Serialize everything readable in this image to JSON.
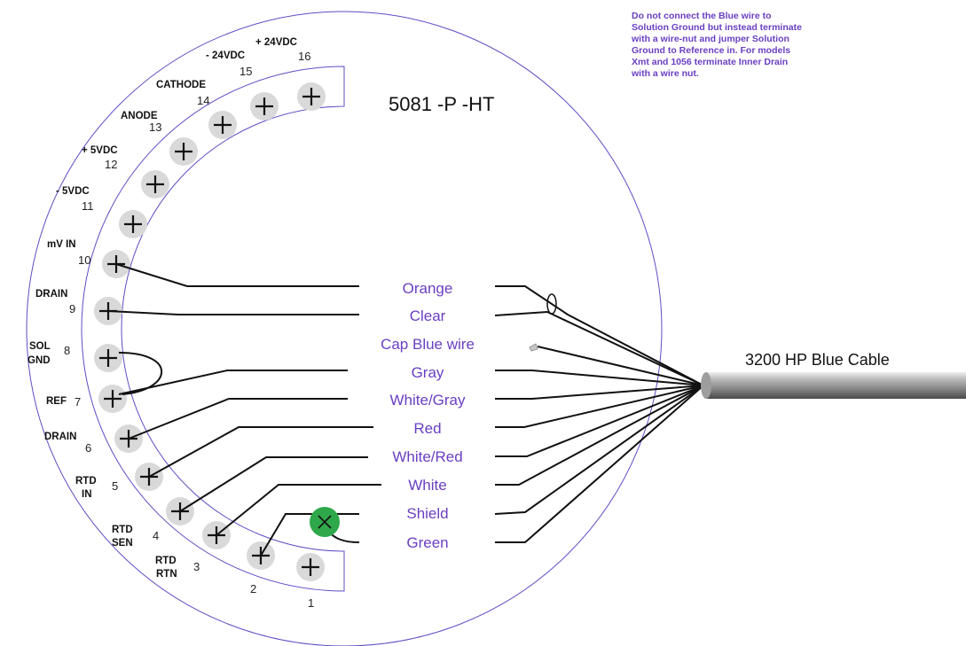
{
  "model_title": "5081 -P -HT",
  "cable_label": "3200 HP Blue Cable",
  "note": "Do not connect the Blue wire to Solution Ground but instead terminate with a wire-nut and jumper Solution Ground to Reference in.  For models Xmt and 1056 terminate Inner Drain with a wire nut.",
  "terminals": [
    {
      "num": "1"
    },
    {
      "num": "2"
    },
    {
      "num": "3",
      "label_line1": "RTD",
      "label_line2": "RTN"
    },
    {
      "num": "4",
      "label_line1": "RTD",
      "label_line2": "SEN"
    },
    {
      "num": "5",
      "label_line1": "RTD",
      "label_line2": "IN"
    },
    {
      "num": "6",
      "label_line1": "DRAIN"
    },
    {
      "num": "7",
      "label_line1": "REF"
    },
    {
      "num": "8",
      "label_line1": "SOL",
      "label_line2": "GND"
    },
    {
      "num": "9",
      "label_line1": "DRAIN"
    },
    {
      "num": "10",
      "label_line1": "mV IN"
    },
    {
      "num": "11",
      "label_line1": "- 5VDC"
    },
    {
      "num": "12",
      "label_line1": "+ 5VDC"
    },
    {
      "num": "13",
      "label_line1": "ANODE"
    },
    {
      "num": "14",
      "label_line1": "CATHODE"
    },
    {
      "num": "15",
      "label_line1": "- 24VDC"
    },
    {
      "num": "16",
      "label_line1": "+ 24VDC"
    }
  ],
  "wires": [
    {
      "label": "Orange",
      "terminal": "10"
    },
    {
      "label": "Clear",
      "terminal": "9"
    },
    {
      "label": "Cap Blue wire",
      "terminal": ""
    },
    {
      "label": "Gray",
      "terminal": "7"
    },
    {
      "label": "White/Gray",
      "terminal": "6"
    },
    {
      "label": "Red",
      "terminal": "5"
    },
    {
      "label": "White/Red",
      "terminal": "4"
    },
    {
      "label": "White",
      "terminal": "3"
    },
    {
      "label": "Shield",
      "terminal": "2"
    },
    {
      "label": "Green",
      "terminal": ""
    }
  ],
  "colors": {
    "wire_label": "#6a3fc2",
    "outline": "#5b4fc4",
    "terminal_fill": "#d9d9d9",
    "ground_marker": "#2ea84a"
  }
}
